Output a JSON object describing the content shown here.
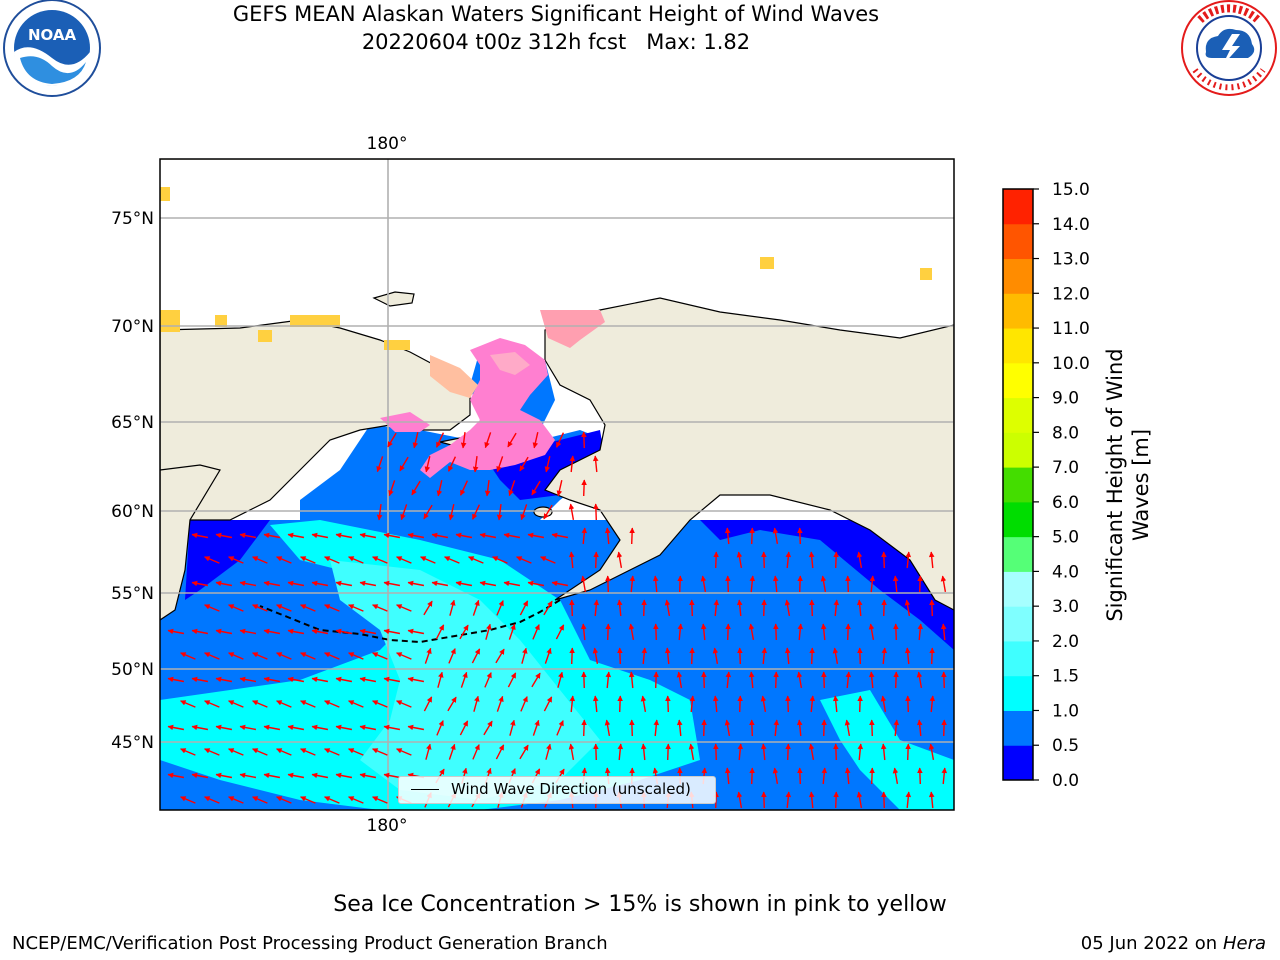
{
  "title": {
    "line1": "GEFS MEAN Alaskan Waters Significant Height of Wind Waves",
    "line2": "20220604 t00z 312h fcst   Max: 1.82"
  },
  "map": {
    "lon_label_top": "180°",
    "lon_label_bottom": "180°",
    "lat_labels": [
      "75°N",
      "70°N",
      "65°N",
      "60°N",
      "55°N",
      "50°N",
      "45°N"
    ],
    "legend_label": "Wind Wave Direction (unscaled)",
    "arrow_color": "#ff0000",
    "land_color": "#efecdc",
    "icons": [
      "noaa-logo",
      "nws-logo"
    ]
  },
  "colorbar": {
    "label_line1": "Significant Height of Wind",
    "label_line2": "Waves [m]",
    "ticks": [
      "0.0",
      "0.5",
      "1.0",
      "1.5",
      "2.0",
      "3.0",
      "4.0",
      "5.0",
      "6.0",
      "7.0",
      "8.0",
      "9.0",
      "10.0",
      "11.0",
      "12.0",
      "13.0",
      "14.0",
      "15.0"
    ],
    "colors": [
      "#0000ff",
      "#0077ff",
      "#00ffff",
      "#3fffff",
      "#7fffff",
      "#a6ffff",
      "#55ff77",
      "#00dd00",
      "#44dd00",
      "#ccff00",
      "#ddff00",
      "#ffff00",
      "#ffe600",
      "#ffbb00",
      "#ff8c00",
      "#ff5500",
      "#ff2200"
    ]
  },
  "footer": {
    "sea_ice_note": "Sea Ice Concentration > 15% is shown in pink to yellow",
    "producer": "NCEP/EMC/Verification Post Processing Product Generation Branch",
    "date": "05 Jun 2022 on",
    "machine": "Hera"
  }
}
